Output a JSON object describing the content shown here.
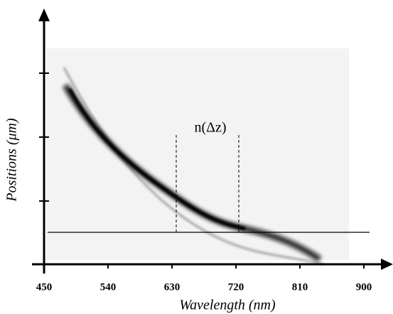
{
  "chart_data": {
    "type": "image",
    "xlabel": "Wavelength (nm)",
    "ylabel": "Positions (μm)",
    "annotation": "n(Δz)",
    "xlim": [
      450,
      900
    ],
    "xticks": [
      450,
      540,
      630,
      720,
      810,
      900
    ]
  }
}
